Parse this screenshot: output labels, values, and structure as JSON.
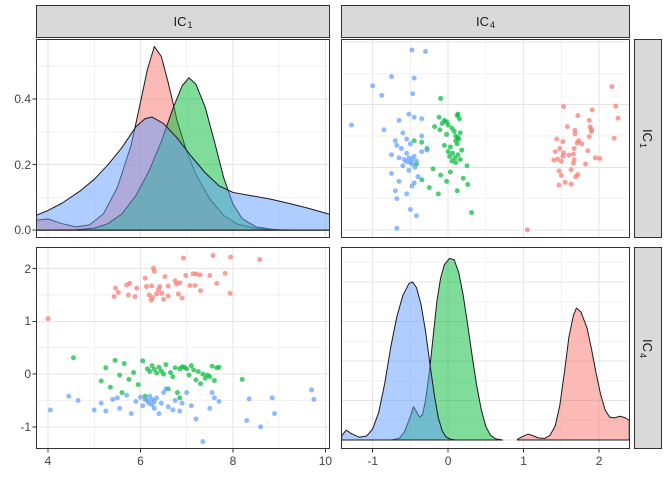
{
  "strips": {
    "top_col1": {
      "base": "IC",
      "sub": "1"
    },
    "top_col2": {
      "base": "IC",
      "sub": "4"
    },
    "right_row1": {
      "base": "IC",
      "sub": "1"
    },
    "right_row2": {
      "base": "IC",
      "sub": "4"
    }
  },
  "colors": {
    "group1": "#F8766D",
    "group2": "#00BA38",
    "group3": "#619CFF",
    "strip_bg": "#D9D9D9",
    "strip_border": "#333333",
    "panel_border": "#333333",
    "grid_major": "#E4E4E4",
    "grid_minor": "#F2F2F2",
    "axis_text": "#444444",
    "density_outline": "#1A1A1A"
  },
  "chart_data": {
    "type": "pairs-matrix",
    "variables": [
      "IC1",
      "IC4"
    ],
    "legend": "none",
    "grid": "on",
    "groups": [
      {
        "id": "group1",
        "color": "#F8766D"
      },
      {
        "id": "group2",
        "color": "#00BA38"
      },
      {
        "id": "group3",
        "color": "#619CFF"
      }
    ],
    "panels": [
      {
        "row": 1,
        "col": 1,
        "type": "density",
        "var": "IC1",
        "strip": "IC1"
      },
      {
        "row": 1,
        "col": 2,
        "type": "scatter",
        "x": "IC4",
        "y": "IC1",
        "strip": "IC4"
      },
      {
        "row": 2,
        "col": 1,
        "type": "scatter",
        "x": "IC1",
        "y": "IC4"
      },
      {
        "row": 2,
        "col": 2,
        "type": "density",
        "var": "IC4"
      }
    ],
    "axes": {
      "IC1": {
        "range": [
          3.74,
          10.1
        ],
        "major": [
          4,
          6,
          8,
          10
        ],
        "minor": [
          5,
          7,
          9
        ],
        "tick_labels": [
          "4",
          "6",
          "8",
          "10"
        ]
      },
      "IC4": {
        "range": [
          -1.42,
          2.41
        ],
        "major": [
          -1,
          0,
          1,
          2
        ],
        "minor": [
          -0.5,
          0.5,
          1.5
        ],
        "tick_labels": [
          "-1",
          "0",
          "1",
          "2"
        ]
      },
      "density_IC1": {
        "range": [
          -0.024,
          0.583
        ],
        "major": [
          0,
          0.2,
          0.4
        ],
        "minor": [
          0.1,
          0.3,
          0.5
        ],
        "tick_labels": [
          "0.0",
          "0.2",
          "0.4"
        ]
      },
      "density_IC4": {
        "range": [
          -0.114,
          2.443
        ],
        "major": [
          0,
          0.5,
          1,
          1.5,
          2
        ],
        "minor": [
          0.25,
          0.75,
          1.25,
          1.75,
          2.25
        ],
        "tick_labels": []
      }
    },
    "scatter_points": {
      "group1": [
        [
          6.93,
          2.2
        ],
        [
          7.57,
          2.25
        ],
        [
          7.95,
          2.22
        ],
        [
          8.58,
          2.17
        ],
        [
          6.28,
          2.01
        ],
        [
          6.3,
          1.95
        ],
        [
          6.1,
          1.82
        ],
        [
          6.53,
          1.85
        ],
        [
          6.75,
          1.77
        ],
        [
          6.98,
          1.87
        ],
        [
          7.14,
          1.9
        ],
        [
          7.21,
          1.9
        ],
        [
          7.29,
          1.88
        ],
        [
          7.5,
          1.87
        ],
        [
          7.83,
          1.91
        ],
        [
          5.7,
          1.69
        ],
        [
          5.77,
          1.72
        ],
        [
          5.92,
          1.63
        ],
        [
          6.13,
          1.66
        ],
        [
          6.24,
          1.67
        ],
        [
          6.39,
          1.6
        ],
        [
          6.42,
          1.66
        ],
        [
          6.6,
          1.67
        ],
        [
          6.78,
          1.71
        ],
        [
          6.85,
          1.73
        ],
        [
          7.07,
          1.68
        ],
        [
          7.18,
          1.68
        ],
        [
          7.65,
          1.72
        ],
        [
          5.46,
          1.63
        ],
        [
          5.52,
          1.55
        ],
        [
          5.74,
          1.5
        ],
        [
          5.88,
          1.47
        ],
        [
          6.19,
          1.5
        ],
        [
          6.26,
          1.45
        ],
        [
          6.35,
          1.52
        ],
        [
          6.46,
          1.53
        ],
        [
          6.6,
          1.48
        ],
        [
          6.82,
          1.52
        ],
        [
          7.94,
          1.53
        ],
        [
          5.43,
          1.47
        ],
        [
          6.23,
          1.4
        ],
        [
          6.5,
          1.42
        ],
        [
          6.9,
          1.44
        ],
        [
          7.3,
          1.58
        ],
        [
          4.0,
          1.05
        ]
      ],
      "group2": [
        [
          4.55,
          0.31
        ],
        [
          5.25,
          0.12
        ],
        [
          5.45,
          0.26
        ],
        [
          5.65,
          0.2
        ],
        [
          5.55,
          -0.02
        ],
        [
          5.15,
          -0.13
        ],
        [
          5.35,
          -0.25
        ],
        [
          5.75,
          -0.1
        ],
        [
          5.85,
          0.03
        ],
        [
          5.95,
          -0.2
        ],
        [
          6.05,
          0.25
        ],
        [
          6.15,
          0.1
        ],
        [
          6.2,
          0.05
        ],
        [
          6.25,
          0.16
        ],
        [
          6.3,
          0.09
        ],
        [
          6.35,
          0.02
        ],
        [
          6.4,
          0.13
        ],
        [
          6.45,
          0.06
        ],
        [
          6.5,
          0.0
        ],
        [
          6.55,
          0.18
        ],
        [
          6.6,
          -0.28
        ],
        [
          6.65,
          0.03
        ],
        [
          6.7,
          -0.05
        ],
        [
          6.75,
          0.12
        ],
        [
          6.8,
          -0.35
        ],
        [
          6.85,
          0.1
        ],
        [
          6.9,
          0.14
        ],
        [
          6.95,
          0.13
        ],
        [
          7.0,
          0.1
        ],
        [
          7.05,
          -0.02
        ],
        [
          7.1,
          0.16
        ],
        [
          7.15,
          0.08
        ],
        [
          7.2,
          -0.11
        ],
        [
          7.25,
          0.05
        ],
        [
          7.3,
          -0.18
        ],
        [
          7.35,
          0.0
        ],
        [
          7.4,
          -0.08
        ],
        [
          7.45,
          -0.02
        ],
        [
          7.5,
          -0.05
        ],
        [
          7.55,
          0.15
        ],
        [
          7.6,
          -0.12
        ],
        [
          7.65,
          0.12
        ],
        [
          7.7,
          0.13
        ],
        [
          8.2,
          -0.1
        ],
        [
          6.1,
          -0.42
        ],
        [
          5.6,
          -0.35
        ],
        [
          6.85,
          -0.45
        ]
      ],
      "group3": [
        [
          4.05,
          -0.68
        ],
        [
          4.45,
          -0.42
        ],
        [
          4.65,
          -0.5
        ],
        [
          5.0,
          -0.68
        ],
        [
          5.15,
          -0.55
        ],
        [
          5.25,
          -0.7
        ],
        [
          5.4,
          -0.48
        ],
        [
          5.5,
          -0.45
        ],
        [
          5.55,
          -0.65
        ],
        [
          5.7,
          -0.4
        ],
        [
          5.8,
          -0.75
        ],
        [
          5.9,
          -0.52
        ],
        [
          6.0,
          -0.44
        ],
        [
          6.05,
          -0.6
        ],
        [
          6.1,
          -0.48
        ],
        [
          6.15,
          -0.5
        ],
        [
          6.18,
          -0.55
        ],
        [
          6.2,
          -0.42
        ],
        [
          6.25,
          -0.48
        ],
        [
          6.25,
          -0.58
        ],
        [
          6.3,
          -0.52
        ],
        [
          6.3,
          -0.65
        ],
        [
          6.35,
          -0.45
        ],
        [
          6.4,
          -0.75
        ],
        [
          6.45,
          -0.55
        ],
        [
          6.5,
          -0.35
        ],
        [
          6.55,
          -0.28
        ],
        [
          6.6,
          -0.62
        ],
        [
          6.7,
          -0.68
        ],
        [
          6.75,
          -0.5
        ],
        [
          6.85,
          -0.7
        ],
        [
          6.9,
          -0.55
        ],
        [
          7.0,
          -0.35
        ],
        [
          7.1,
          -0.6
        ],
        [
          7.2,
          -0.85
        ],
        [
          7.35,
          -1.28
        ],
        [
          7.5,
          -0.65
        ],
        [
          7.55,
          -0.35
        ],
        [
          7.6,
          -0.45
        ],
        [
          7.7,
          -0.52
        ],
        [
          8.3,
          -0.88
        ],
        [
          8.35,
          -0.47
        ],
        [
          8.6,
          -1.0
        ],
        [
          8.9,
          -0.75
        ],
        [
          8.85,
          -0.45
        ],
        [
          9.7,
          -0.3
        ],
        [
          9.75,
          -0.48
        ]
      ]
    },
    "density_IC1_curves": {
      "group1": [
        [
          3.74,
          0.03
        ],
        [
          4.0,
          0.034
        ],
        [
          4.3,
          0.02
        ],
        [
          4.6,
          0.01
        ],
        [
          4.9,
          0.016
        ],
        [
          5.2,
          0.05
        ],
        [
          5.5,
          0.13
        ],
        [
          5.8,
          0.26
        ],
        [
          6.0,
          0.39
        ],
        [
          6.15,
          0.49
        ],
        [
          6.3,
          0.56
        ],
        [
          6.45,
          0.53
        ],
        [
          6.6,
          0.45
        ],
        [
          6.8,
          0.33
        ],
        [
          7.0,
          0.24
        ],
        [
          7.2,
          0.17
        ],
        [
          7.5,
          0.095
        ],
        [
          7.8,
          0.045
        ],
        [
          8.1,
          0.018
        ],
        [
          8.5,
          0.005
        ],
        [
          9.0,
          0.001
        ],
        [
          9.5,
          0
        ],
        [
          10.1,
          0
        ]
      ],
      "group2": [
        [
          3.74,
          0
        ],
        [
          4.6,
          0.001
        ],
        [
          5.0,
          0.006
        ],
        [
          5.3,
          0.02
        ],
        [
          5.6,
          0.05
        ],
        [
          5.9,
          0.105
        ],
        [
          6.2,
          0.185
        ],
        [
          6.45,
          0.27
        ],
        [
          6.7,
          0.37
        ],
        [
          6.9,
          0.44
        ],
        [
          7.05,
          0.465
        ],
        [
          7.2,
          0.445
        ],
        [
          7.4,
          0.375
        ],
        [
          7.6,
          0.27
        ],
        [
          7.8,
          0.16
        ],
        [
          8.0,
          0.08
        ],
        [
          8.2,
          0.035
        ],
        [
          8.5,
          0.01
        ],
        [
          8.9,
          0.001
        ],
        [
          9.3,
          0
        ],
        [
          10.1,
          0
        ]
      ],
      "group3": [
        [
          3.74,
          0.045
        ],
        [
          4.0,
          0.06
        ],
        [
          4.3,
          0.082
        ],
        [
          4.7,
          0.12
        ],
        [
          5.0,
          0.155
        ],
        [
          5.3,
          0.2
        ],
        [
          5.6,
          0.252
        ],
        [
          5.9,
          0.315
        ],
        [
          6.1,
          0.34
        ],
        [
          6.25,
          0.345
        ],
        [
          6.5,
          0.325
        ],
        [
          6.8,
          0.28
        ],
        [
          7.1,
          0.225
        ],
        [
          7.4,
          0.175
        ],
        [
          7.7,
          0.135
        ],
        [
          8.0,
          0.115
        ],
        [
          8.4,
          0.105
        ],
        [
          8.8,
          0.095
        ],
        [
          9.2,
          0.082
        ],
        [
          9.6,
          0.068
        ],
        [
          10.1,
          0.048
        ]
      ]
    },
    "density_IC4_curves": {
      "group1": [
        [
          0.92,
          0.01
        ],
        [
          1.0,
          0.05
        ],
        [
          1.06,
          0.075
        ],
        [
          1.12,
          0.055
        ],
        [
          1.2,
          0.025
        ],
        [
          1.28,
          0.02
        ],
        [
          1.35,
          0.06
        ],
        [
          1.42,
          0.18
        ],
        [
          1.48,
          0.44
        ],
        [
          1.54,
          0.85
        ],
        [
          1.6,
          1.3
        ],
        [
          1.66,
          1.58
        ],
        [
          1.7,
          1.67
        ],
        [
          1.76,
          1.62
        ],
        [
          1.84,
          1.42
        ],
        [
          1.9,
          1.15
        ],
        [
          1.96,
          0.85
        ],
        [
          2.02,
          0.58
        ],
        [
          2.08,
          0.38
        ],
        [
          2.14,
          0.29
        ],
        [
          2.2,
          0.28
        ],
        [
          2.28,
          0.3
        ],
        [
          2.35,
          0.28
        ],
        [
          2.4,
          0.25
        ]
      ],
      "group2": [
        [
          -0.75,
          0
        ],
        [
          -0.65,
          0.02
        ],
        [
          -0.58,
          0.1
        ],
        [
          -0.5,
          0.3
        ],
        [
          -0.46,
          0.42
        ],
        [
          -0.42,
          0.36
        ],
        [
          -0.38,
          0.29
        ],
        [
          -0.34,
          0.32
        ],
        [
          -0.3,
          0.5
        ],
        [
          -0.25,
          0.85
        ],
        [
          -0.2,
          1.3
        ],
        [
          -0.15,
          1.75
        ],
        [
          -0.1,
          2.05
        ],
        [
          -0.05,
          2.22
        ],
        [
          0.02,
          2.3
        ],
        [
          0.08,
          2.28
        ],
        [
          0.14,
          2.12
        ],
        [
          0.2,
          1.83
        ],
        [
          0.26,
          1.45
        ],
        [
          0.32,
          1.05
        ],
        [
          0.38,
          0.68
        ],
        [
          0.44,
          0.38
        ],
        [
          0.5,
          0.17
        ],
        [
          0.56,
          0.06
        ],
        [
          0.63,
          0.015
        ],
        [
          0.72,
          0
        ]
      ],
      "group3": [
        [
          -1.41,
          0.055
        ],
        [
          -1.35,
          0.125
        ],
        [
          -1.28,
          0.08
        ],
        [
          -1.18,
          0.035
        ],
        [
          -1.08,
          0.05
        ],
        [
          -1.0,
          0.14
        ],
        [
          -0.92,
          0.35
        ],
        [
          -0.84,
          0.72
        ],
        [
          -0.76,
          1.18
        ],
        [
          -0.68,
          1.56
        ],
        [
          -0.6,
          1.83
        ],
        [
          -0.52,
          1.98
        ],
        [
          -0.47,
          2.0
        ],
        [
          -0.42,
          1.93
        ],
        [
          -0.36,
          1.72
        ],
        [
          -0.3,
          1.38
        ],
        [
          -0.24,
          0.95
        ],
        [
          -0.18,
          0.55
        ],
        [
          -0.13,
          0.28
        ],
        [
          -0.08,
          0.12
        ],
        [
          -0.03,
          0.04
        ],
        [
          0.03,
          0.01
        ],
        [
          0.1,
          0
        ]
      ]
    }
  }
}
